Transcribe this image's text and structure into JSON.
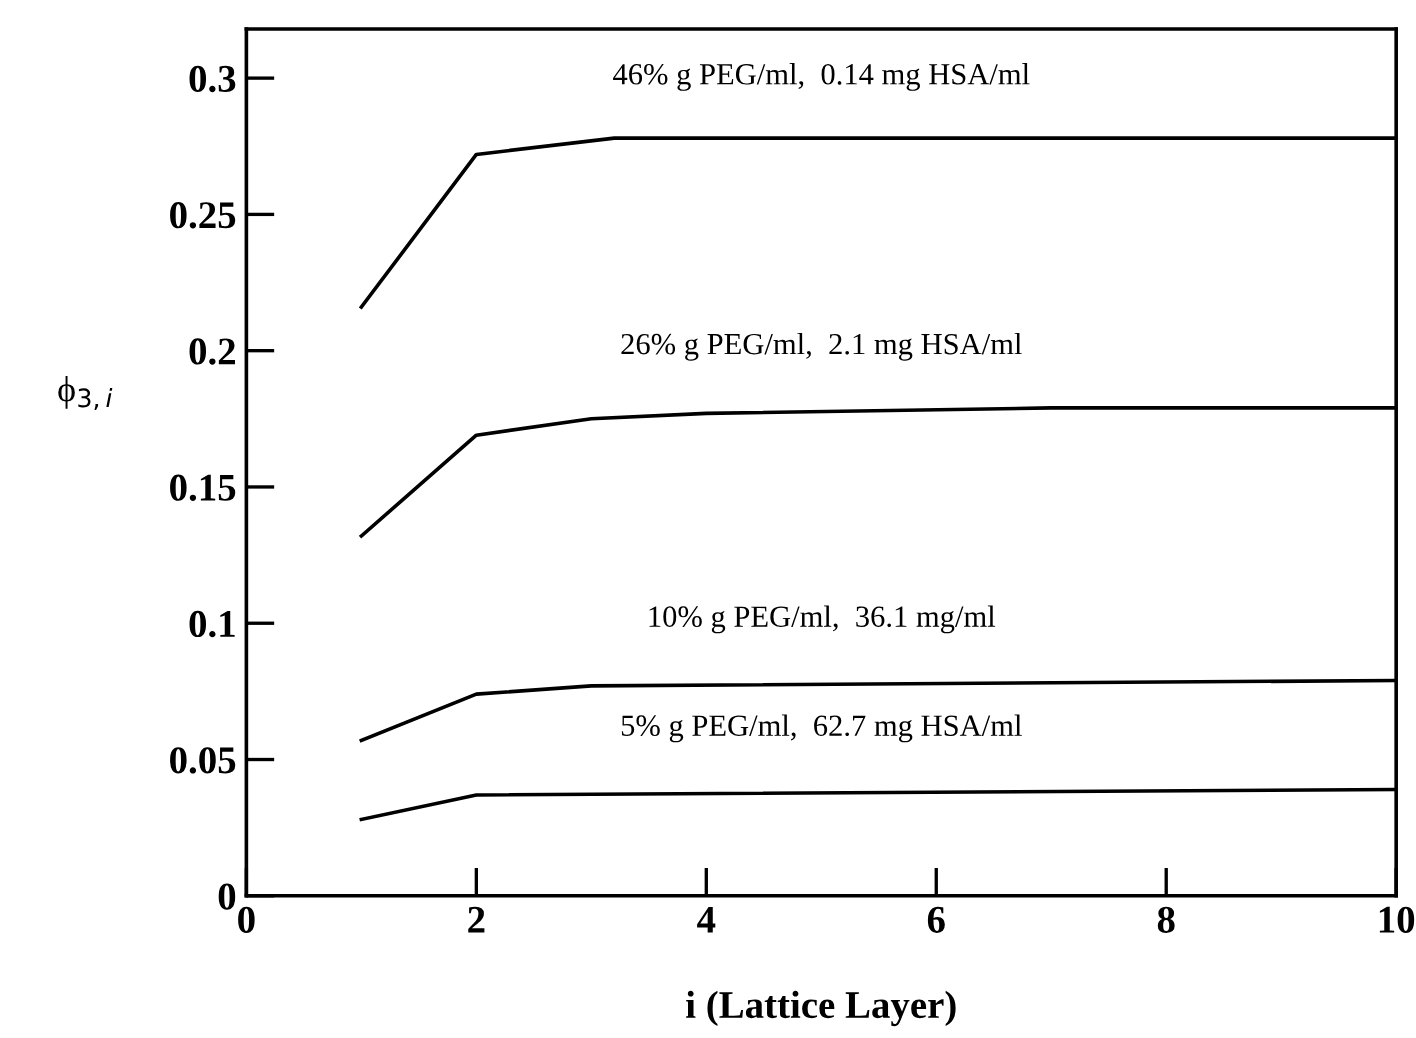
{
  "chart_data": {
    "type": "line",
    "xlabel": "i (Lattice Layer)",
    "ylabel": "ϕ$_{3,i}$",
    "series": [
      {
        "color": "#000000",
        "x": [
          1,
          2,
          3.2,
          10
        ],
        "values": [
          0.216,
          0.272,
          0.278,
          0.278
        ]
      },
      {
        "color": "#000000",
        "x": [
          1,
          2,
          3,
          4,
          7,
          10
        ],
        "values": [
          0.132,
          0.169,
          0.175,
          0.177,
          0.179,
          0.179
        ]
      },
      {
        "color": "#000000",
        "x": [
          1,
          2,
          3,
          10
        ],
        "values": [
          0.057,
          0.074,
          0.077,
          0.079
        ]
      },
      {
        "color": "#000000",
        "x": [
          1,
          2,
          10
        ],
        "values": [
          0.028,
          0.037,
          0.039
        ]
      }
    ],
    "annotations": [
      "46% g PEG/ml,  0.14 mg HSA/ml",
      "26% g PEG/ml,  2.1 mg HSA/ml",
      "10% g PEG/ml,  36.1 mg/ml",
      "5% g PEG/ml,  62.7 mg HSA/ml"
    ],
    "xlim": [
      0,
      10
    ],
    "ylim": [
      0,
      0.318
    ],
    "xticks": [
      0,
      2,
      4,
      6,
      8,
      10
    ],
    "yticks": [
      0,
      0.05,
      0.1,
      0.15,
      0.2,
      0.25,
      0.3
    ],
    "grid": false,
    "legend": false,
    "marker": "none",
    "line_style": "solid"
  }
}
